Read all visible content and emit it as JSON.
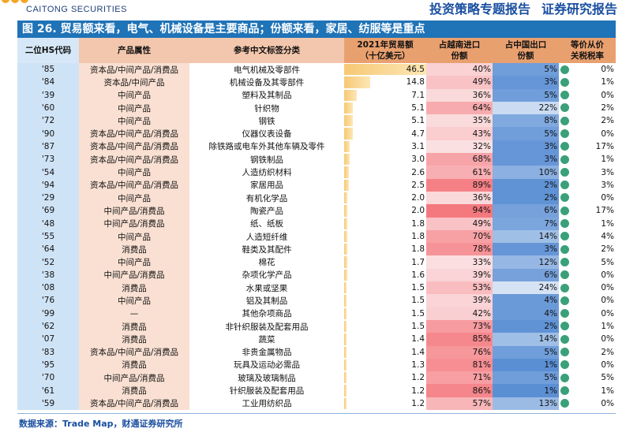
{
  "header": {
    "logo_text": "CAITONG SECURITIES",
    "doc_type": "投资策略专题报告",
    "company": "证券研究报告"
  },
  "figure": {
    "title": "图 26. 贸易额来看，电气、机械设备是主要商品；份额来看，家居、纺服等是重点"
  },
  "table": {
    "headers": {
      "code": "二位HS代码",
      "prop": "产品属性",
      "cat": "参考中文标签分类",
      "val_line1": "2021年贸易额",
      "val_line2": "（十亿美元）",
      "vn_line1": "占越南进口",
      "vn_line2": "份额",
      "cn_line1": "占中国出口",
      "cn_line2": "份额",
      "tax_line1": "等价从价",
      "tax_line2": "关税税率"
    },
    "max_value": 46.5,
    "colors": {
      "vn_high": "#f4777d",
      "vn_low": "#fbe3e4",
      "cn_high": "#5b8fd4",
      "cn_low": "#dbe7f6",
      "dot": "#3aa07a"
    },
    "rows": [
      {
        "code": "'85",
        "prop": "资本品/中间产品/消费品",
        "cat": "电气机械及零部件",
        "val": "46.5",
        "v": 46.5,
        "vn": "40%",
        "vnp": 40,
        "cn": "5%",
        "cnp": 5,
        "tax": "0%"
      },
      {
        "code": "'84",
        "prop": "资本品/中间产品",
        "cat": "机械设备及其零部件",
        "val": "14.8",
        "v": 14.8,
        "vn": "49%",
        "vnp": 49,
        "cn": "3%",
        "cnp": 3,
        "tax": "1%"
      },
      {
        "code": "'39",
        "prop": "中间产品",
        "cat": "塑料及其制品",
        "val": "7.1",
        "v": 7.1,
        "vn": "36%",
        "vnp": 36,
        "cn": "5%",
        "cnp": 5,
        "tax": "0%"
      },
      {
        "code": "'60",
        "prop": "中间产品",
        "cat": "针织物",
        "val": "5.1",
        "v": 5.1,
        "vn": "64%",
        "vnp": 64,
        "cn": "22%",
        "cnp": 22,
        "tax": "2%"
      },
      {
        "code": "'72",
        "prop": "中间产品",
        "cat": "钢铁",
        "val": "5.1",
        "v": 5.1,
        "vn": "35%",
        "vnp": 35,
        "cn": "8%",
        "cnp": 8,
        "tax": "2%"
      },
      {
        "code": "'90",
        "prop": "资本品/中间产品/消费品",
        "cat": "仪器仪表设备",
        "val": "4.7",
        "v": 4.7,
        "vn": "43%",
        "vnp": 43,
        "cn": "5%",
        "cnp": 5,
        "tax": "0%"
      },
      {
        "code": "'87",
        "prop": "资本品/中间产品/消费品",
        "cat": "除铁路或电车外其他车辆及零件",
        "val": "3.1",
        "v": 3.1,
        "vn": "32%",
        "vnp": 32,
        "cn": "3%",
        "cnp": 3,
        "tax": "17%"
      },
      {
        "code": "'73",
        "prop": "资本品/中间产品/消费品",
        "cat": "钢铁制品",
        "val": "3.0",
        "v": 3.0,
        "vn": "68%",
        "vnp": 68,
        "cn": "3%",
        "cnp": 3,
        "tax": "1%"
      },
      {
        "code": "'54",
        "prop": "中间产品",
        "cat": "人造纺织材料",
        "val": "2.6",
        "v": 2.6,
        "vn": "61%",
        "vnp": 61,
        "cn": "10%",
        "cnp": 10,
        "tax": "3%"
      },
      {
        "code": "'94",
        "prop": "资本品/中间产品/消费品",
        "cat": "家居用品",
        "val": "2.5",
        "v": 2.5,
        "vn": "89%",
        "vnp": 89,
        "cn": "2%",
        "cnp": 2,
        "tax": "3%"
      },
      {
        "code": "'29",
        "prop": "中间产品",
        "cat": "有机化学品",
        "val": "2.0",
        "v": 2.0,
        "vn": "36%",
        "vnp": 36,
        "cn": "2%",
        "cnp": 2,
        "tax": "0%"
      },
      {
        "code": "'69",
        "prop": "中间产品/消费品",
        "cat": "陶瓷产品",
        "val": "2.0",
        "v": 2.0,
        "vn": "94%",
        "vnp": 94,
        "cn": "6%",
        "cnp": 6,
        "tax": "17%"
      },
      {
        "code": "'48",
        "prop": "中间产品/消费品",
        "cat": "纸、纸板",
        "val": "1.8",
        "v": 1.8,
        "vn": "49%",
        "vnp": 49,
        "cn": "7%",
        "cnp": 7,
        "tax": "1%"
      },
      {
        "code": "'55",
        "prop": "中间产品",
        "cat": "人造短纤维",
        "val": "1.8",
        "v": 1.8,
        "vn": "70%",
        "vnp": 70,
        "cn": "14%",
        "cnp": 14,
        "tax": "4%"
      },
      {
        "code": "'64",
        "prop": "消费品",
        "cat": "鞋类及其配件",
        "val": "1.8",
        "v": 1.8,
        "vn": "78%",
        "vnp": 78,
        "cn": "3%",
        "cnp": 3,
        "tax": "2%"
      },
      {
        "code": "'52",
        "prop": "中间产品",
        "cat": "棉花",
        "val": "1.7",
        "v": 1.7,
        "vn": "33%",
        "vnp": 33,
        "cn": "12%",
        "cnp": 12,
        "tax": "5%"
      },
      {
        "code": "'38",
        "prop": "中间产品/消费品",
        "cat": "杂项化学产品",
        "val": "1.6",
        "v": 1.6,
        "vn": "39%",
        "vnp": 39,
        "cn": "6%",
        "cnp": 6,
        "tax": "0%"
      },
      {
        "code": "'08",
        "prop": "消费品",
        "cat": "水果或坚果",
        "val": "1.5",
        "v": 1.5,
        "vn": "53%",
        "vnp": 53,
        "cn": "24%",
        "cnp": 24,
        "tax": "0%"
      },
      {
        "code": "'76",
        "prop": "中间产品",
        "cat": "铝及其制品",
        "val": "1.5",
        "v": 1.5,
        "vn": "39%",
        "vnp": 39,
        "cn": "4%",
        "cnp": 4,
        "tax": "0%"
      },
      {
        "code": "'99",
        "prop": "—",
        "cat": "其他杂项商品",
        "val": "1.5",
        "v": 1.5,
        "vn": "42%",
        "vnp": 42,
        "cn": "4%",
        "cnp": 4,
        "tax": "0%"
      },
      {
        "code": "'62",
        "prop": "消费品",
        "cat": "非针织服装及配套用品",
        "val": "1.5",
        "v": 1.5,
        "vn": "73%",
        "vnp": 73,
        "cn": "2%",
        "cnp": 2,
        "tax": "1%"
      },
      {
        "code": "'07",
        "prop": "消费品",
        "cat": "蔬菜",
        "val": "1.4",
        "v": 1.4,
        "vn": "85%",
        "vnp": 85,
        "cn": "14%",
        "cnp": 14,
        "tax": "0%"
      },
      {
        "code": "'83",
        "prop": "资本品/中间产品/消费品",
        "cat": "非贵金属物品",
        "val": "1.4",
        "v": 1.4,
        "vn": "76%",
        "vnp": 76,
        "cn": "5%",
        "cnp": 5,
        "tax": "2%"
      },
      {
        "code": "'95",
        "prop": "消费品",
        "cat": "玩具及运动必需品",
        "val": "1.3",
        "v": 1.3,
        "vn": "81%",
        "vnp": 81,
        "cn": "1%",
        "cnp": 1,
        "tax": "0%"
      },
      {
        "code": "'70",
        "prop": "中间产品/消费品",
        "cat": "玻璃及玻璃制品",
        "val": "1.2",
        "v": 1.2,
        "vn": "71%",
        "vnp": 71,
        "cn": "5%",
        "cnp": 5,
        "tax": "5%"
      },
      {
        "code": "'61",
        "prop": "消费品",
        "cat": "针织服装及配套用品",
        "val": "1.2",
        "v": 1.2,
        "vn": "86%",
        "vnp": 86,
        "cn": "1%",
        "cnp": 1,
        "tax": "1%"
      },
      {
        "code": "'59",
        "prop": "资本品/中间产品/消费品",
        "cat": "工业用纺织品",
        "val": "1.2",
        "v": 1.2,
        "vn": "57%",
        "vnp": 57,
        "cn": "13%",
        "cnp": 13,
        "tax": "0%"
      }
    ]
  },
  "source": "数据来源：Trade Map，财通证券研究所"
}
